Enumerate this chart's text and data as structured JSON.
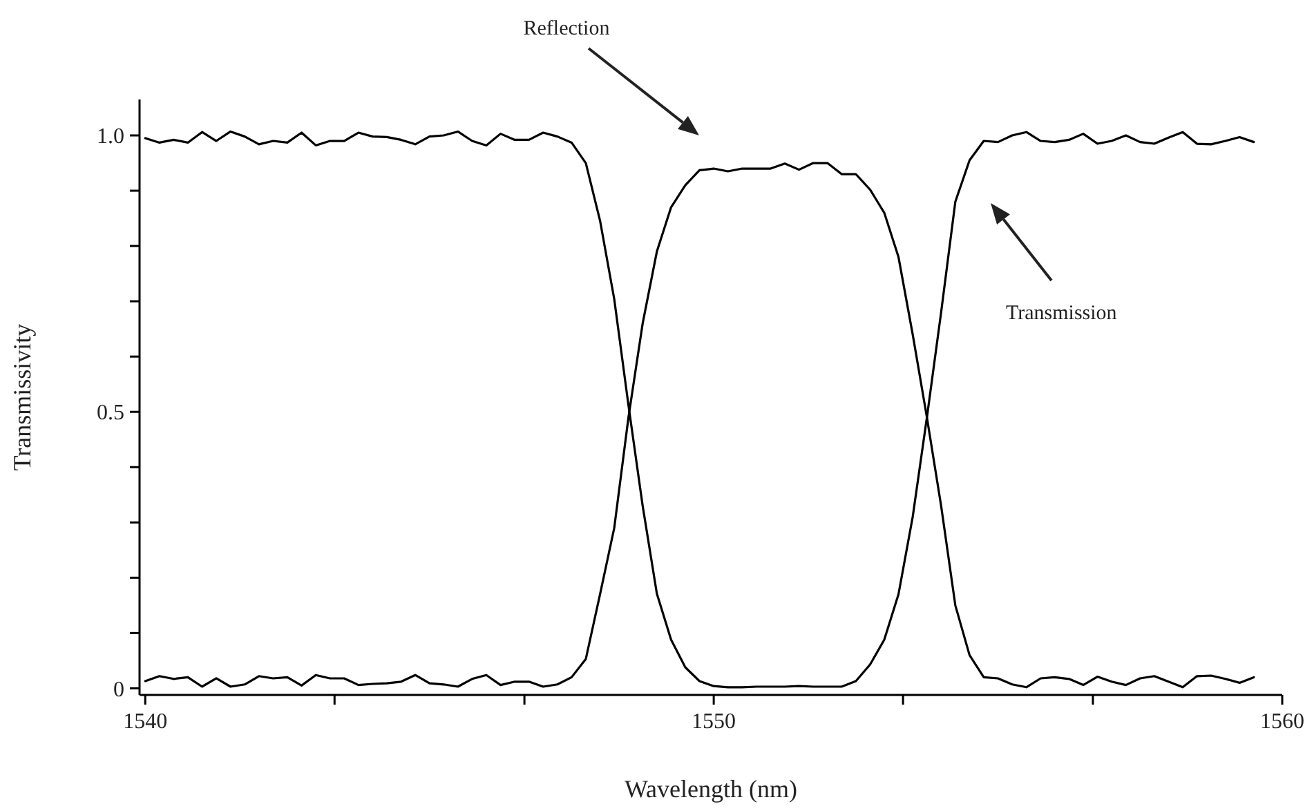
{
  "chart_data": {
    "type": "line",
    "xlabel": "Wavelength (nm)",
    "ylabel": "Transmissivity",
    "x": [
      1540,
      1540.25,
      1540.5,
      1540.75,
      1541,
      1541.25,
      1541.5,
      1541.75,
      1542,
      1542.25,
      1542.5,
      1542.75,
      1543,
      1543.25,
      1543.5,
      1543.75,
      1544,
      1544.25,
      1544.5,
      1544.75,
      1545,
      1545.25,
      1545.5,
      1545.75,
      1546,
      1546.25,
      1546.5,
      1546.75,
      1547,
      1547.25,
      1547.5,
      1547.75,
      1548,
      1548.25,
      1548.5,
      1548.75,
      1549,
      1549.25,
      1549.5,
      1549.75,
      1550,
      1550.25,
      1550.5,
      1550.75,
      1551,
      1551.25,
      1551.5,
      1551.75,
      1552,
      1552.25,
      1552.5,
      1552.75,
      1553,
      1553.25,
      1553.5,
      1553.75,
      1554,
      1554.25,
      1554.5,
      1554.75,
      1555,
      1555.25,
      1555.5,
      1555.75,
      1556,
      1556.25,
      1556.5,
      1556.75,
      1557,
      1557.25,
      1557.5,
      1557.75,
      1558,
      1558.25,
      1558.5,
      1558.75,
      1559,
      1559.25,
      1559.5
    ],
    "series": [
      {
        "color": "#000000",
        "values": [
          0.995,
          0.987,
          0.992,
          0.987,
          1.006,
          0.99,
          1.007,
          0.998,
          0.984,
          0.99,
          0.987,
          1.005,
          0.982,
          0.99,
          0.99,
          1.005,
          0.998,
          0.997,
          0.992,
          0.984,
          0.998,
          1.0,
          1.007,
          0.99,
          0.982,
          1.003,
          0.992,
          0.992,
          1.005,
          0.998,
          0.987,
          0.95,
          0.846,
          0.704,
          0.512,
          0.33,
          0.171,
          0.088,
          0.038,
          0.013,
          0.004,
          0.002,
          0.002,
          0.003,
          0.003,
          0.003,
          0.004,
          0.003,
          0.003,
          0.003,
          0.013,
          0.043,
          0.088,
          0.17,
          0.31,
          0.49,
          0.68,
          0.88,
          0.955,
          0.99,
          0.988,
          1.0,
          1.006,
          0.99,
          0.988,
          0.992,
          1.003,
          0.985,
          0.99,
          1.0,
          0.988,
          0.985,
          0.996,
          1.006,
          0.985,
          0.984,
          0.99,
          0.997,
          0.988
        ]
      },
      {
        "color": "#000000",
        "values": [
          0.013,
          0.022,
          0.017,
          0.02,
          0.003,
          0.018,
          0.003,
          0.007,
          0.022,
          0.018,
          0.02,
          0.005,
          0.024,
          0.018,
          0.018,
          0.006,
          0.008,
          0.009,
          0.012,
          0.024,
          0.009,
          0.007,
          0.003,
          0.017,
          0.024,
          0.006,
          0.012,
          0.012,
          0.003,
          0.007,
          0.02,
          0.053,
          0.17,
          0.29,
          0.49,
          0.66,
          0.79,
          0.87,
          0.91,
          0.937,
          0.94,
          0.935,
          0.94,
          0.94,
          0.94,
          0.949,
          0.938,
          0.95,
          0.95,
          0.93,
          0.93,
          0.902,
          0.86,
          0.78,
          0.64,
          0.49,
          0.33,
          0.15,
          0.06,
          0.02,
          0.018,
          0.007,
          0.002,
          0.018,
          0.02,
          0.017,
          0.006,
          0.021,
          0.012,
          0.006,
          0.018,
          0.022,
          0.012,
          0.002,
          0.022,
          0.023,
          0.017,
          0.01,
          0.02
        ]
      }
    ],
    "xlim": [
      1539.9,
      1560
    ],
    "ylim": [
      -0.012,
      1.065
    ],
    "xticks": [
      1540,
      {
        "value": 1543.33,
        "label": null
      },
      {
        "value": 1546.67,
        "label": null
      },
      1550,
      {
        "value": 1553.33,
        "label": null
      },
      {
        "value": 1556.67,
        "label": null
      },
      1560
    ],
    "yticks": [
      0,
      {
        "value": 0.1,
        "label": null
      },
      {
        "value": 0.2,
        "label": null
      },
      {
        "value": 0.3,
        "label": null
      },
      {
        "value": 0.4,
        "label": null
      },
      0.5,
      {
        "value": 0.6,
        "label": null
      },
      {
        "value": 0.7,
        "label": null
      },
      {
        "value": 0.8,
        "label": null
      },
      {
        "value": 0.9,
        "label": null
      },
      {
        "value": 1.0,
        "label": "1.0"
      }
    ],
    "line_style": "solid",
    "annotations": [
      "Reflection",
      "Transmission"
    ]
  }
}
